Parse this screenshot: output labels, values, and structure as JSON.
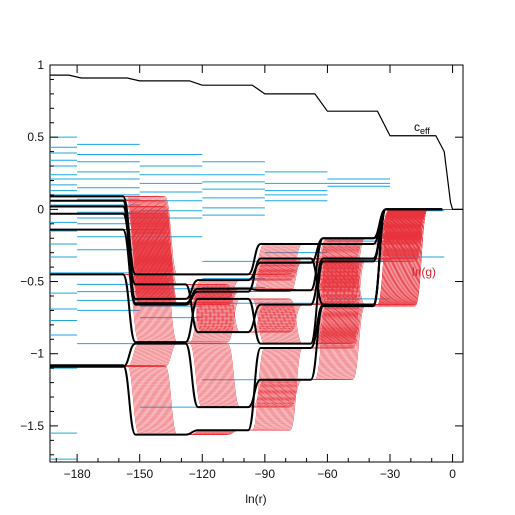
{
  "chart_data": {
    "type": "line",
    "xlabel": "ln(r)",
    "ylabel": "",
    "xlim": [
      -193,
      5
    ],
    "ylim": [
      -1.75,
      1.0
    ],
    "x_ticks": [
      {
        "value": -180,
        "label": "−180"
      },
      {
        "value": -150,
        "label": "−150"
      },
      {
        "value": -120,
        "label": "−120"
      },
      {
        "value": -90,
        "label": "−90"
      },
      {
        "value": -60,
        "label": "−60"
      },
      {
        "value": -30,
        "label": "−30"
      },
      {
        "value": 0,
        "label": "0"
      }
    ],
    "y_ticks": [
      {
        "value": 1,
        "label": "1"
      },
      {
        "value": 0.5,
        "label": "0.5"
      },
      {
        "value": 0,
        "label": "0"
      },
      {
        "value": -0.5,
        "label": "−0.5"
      },
      {
        "value": -1,
        "label": "−1"
      },
      {
        "value": -1.5,
        "label": "−1.5"
      }
    ],
    "grid": false,
    "colors": {
      "ceff": "#000000",
      "lng_thick": "#000000",
      "lng_thin": "#e8323c",
      "levels": "#1ea6e0",
      "lng_label": "#d9232e"
    },
    "annotations": {
      "ceff_base": "c",
      "ceff_sub": "eff",
      "lng": "ln(g)"
    },
    "ceff_series": {
      "name": "c_eff",
      "x": [
        -193,
        -184,
        -178,
        -156,
        -150,
        -126,
        -120,
        -96,
        -90,
        -66,
        -60,
        -36,
        -30,
        -8,
        -4,
        -1,
        0,
        5
      ],
      "y": [
        0.93,
        0.93,
        0.91,
        0.91,
        0.89,
        0.89,
        0.86,
        0.86,
        0.8,
        0.8,
        0.68,
        0.68,
        0.51,
        0.51,
        0.4,
        0.05,
        0.0,
        0.0
      ]
    },
    "lng_curves": [
      {
        "values": [
          0.09,
          -0.45,
          -0.45,
          -0.24,
          -0.24,
          0.0
        ]
      },
      {
        "values": [
          0.06,
          -0.62,
          -0.49,
          -0.37,
          -0.2,
          0.0
        ]
      },
      {
        "values": [
          0.02,
          -0.65,
          -0.55,
          -0.56,
          -0.2,
          0.0
        ]
      },
      {
        "values": [
          -0.03,
          -0.52,
          -0.85,
          -0.66,
          -0.34,
          0.0
        ]
      },
      {
        "values": [
          -0.14,
          -0.66,
          -0.57,
          -0.34,
          -0.66,
          0.0
        ]
      },
      {
        "values": [
          -0.45,
          -0.92,
          -0.62,
          -0.93,
          -0.36,
          0.0
        ]
      },
      {
        "values": [
          -1.09,
          -0.93,
          -1.37,
          -1.18,
          -0.67,
          0.0
        ]
      },
      {
        "values": [
          -1.08,
          -1.56,
          -1.53,
          -0.96,
          -0.66,
          0.0
        ]
      }
    ],
    "lng_steps_x": [
      -193,
      -165,
      -135,
      -105,
      -75,
      -45,
      -15,
      0
    ],
    "thin_curve_count": 34,
    "energy_levels": [
      {
        "x0": -193,
        "x1": -180,
        "y": [
          0.5,
          0.43,
          0.39,
          0.34,
          0.3,
          0.24,
          0.21,
          0.17,
          0.13,
          0.1,
          0.06,
          0.03,
          -0.03,
          -0.09,
          -0.15,
          -0.24,
          -0.33,
          -0.44,
          -0.58,
          -0.69,
          -0.77,
          -0.87,
          -1.1,
          -1.55,
          -1.73
        ]
      },
      {
        "x0": -180,
        "x1": -150,
        "y": [
          0.45,
          0.38,
          0.33,
          0.26,
          0.21,
          0.15,
          0.1,
          0.07,
          0.03,
          -0.02,
          -0.06,
          -0.1,
          -0.19,
          -0.28,
          -0.44,
          -0.52,
          -0.57,
          -0.63,
          -0.7,
          -0.93
        ]
      },
      {
        "x0": -150,
        "x1": -120,
        "y": [
          0.38,
          0.3,
          0.24,
          0.18,
          0.12,
          0.06,
          -0.01,
          -0.06,
          -0.19,
          -0.45,
          -0.55,
          -0.62,
          -0.67,
          -0.75,
          -1.37
        ]
      },
      {
        "x0": -120,
        "x1": -90,
        "y": [
          0.33,
          0.24,
          0.19,
          0.14,
          0.08,
          0.01,
          -0.04,
          -0.36,
          -0.48,
          -0.54,
          -0.65,
          -0.93,
          -1.18
        ]
      },
      {
        "x0": -90,
        "x1": -60,
        "y": [
          0.26,
          0.18,
          0.13,
          0.1,
          0.06,
          -0.24,
          -0.3,
          -0.36,
          -0.65,
          -0.93
        ]
      },
      {
        "x0": -60,
        "x1": -30,
        "y": [
          0.21,
          0.18,
          0.16,
          -0.2,
          -0.22,
          -0.62,
          -0.66,
          -0.35
        ]
      },
      {
        "x0": -30,
        "x1": -4,
        "y": [
          -0.01,
          -0.33
        ]
      }
    ]
  }
}
